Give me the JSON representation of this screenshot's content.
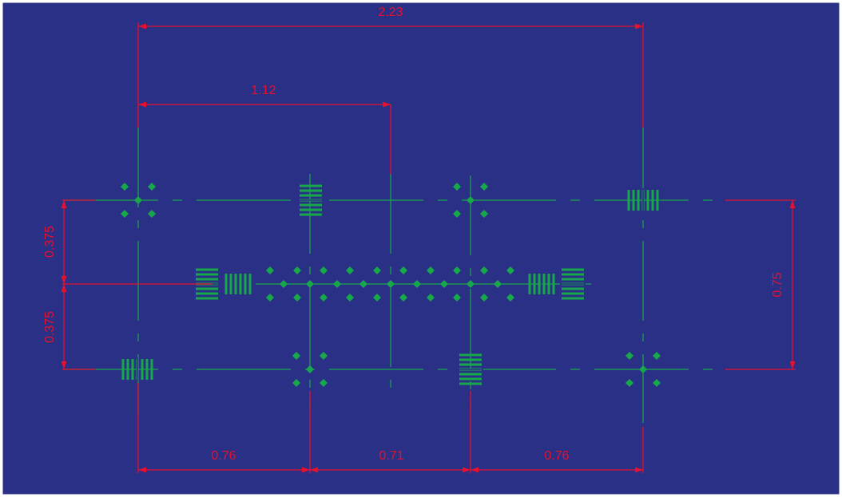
{
  "colors": {
    "background": "#2a3086",
    "frame": "#ffffff",
    "dimension": "#e8102c",
    "geometry": "#17a84a"
  },
  "dimensions": {
    "overall_width": "2.23",
    "half_width": "1.12",
    "upper_half_height": "0.375",
    "lower_half_height": "0.375",
    "total_height": "0.75",
    "left_spacing": "0.76",
    "middle_spacing": "0.71",
    "right_spacing": "0.76"
  },
  "markers": {
    "cross_marker_icon": "diamond-cross-marker",
    "horizontal_bars_icon": "horizontal-bar-grating",
    "vertical_bars_icon": "vertical-bar-grating"
  }
}
